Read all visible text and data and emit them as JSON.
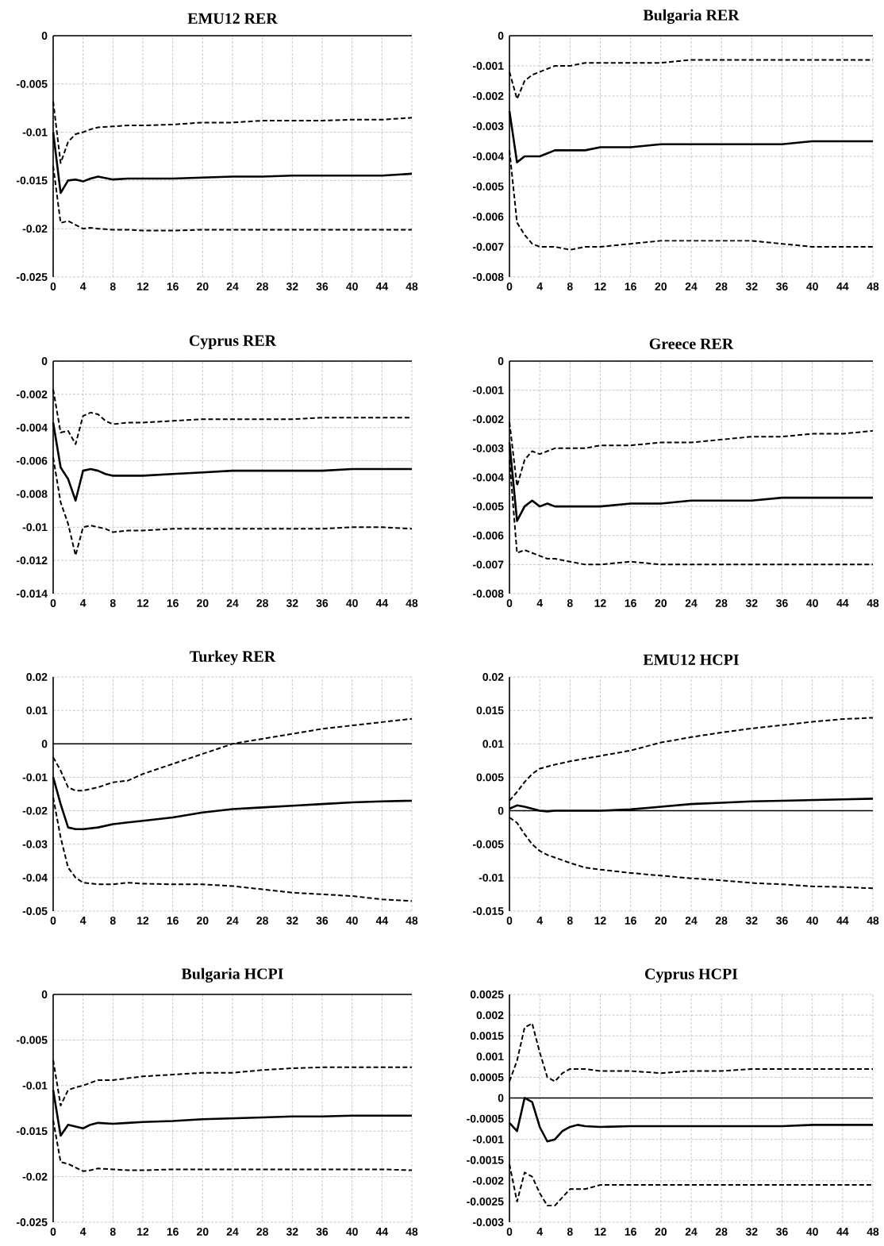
{
  "chart_data": [
    {
      "type": "line",
      "title": "EMU12 RER",
      "x": [
        0,
        1,
        2,
        3,
        4,
        5,
        6,
        8,
        10,
        12,
        16,
        20,
        24,
        28,
        32,
        36,
        40,
        44,
        48
      ],
      "xlim": [
        0,
        48
      ],
      "xticks": [
        0,
        4,
        8,
        12,
        16,
        20,
        24,
        28,
        32,
        36,
        40,
        44,
        48
      ],
      "ylim": [
        -0.025,
        0
      ],
      "yticks": [
        -0.025,
        -0.02,
        -0.015,
        -0.01,
        -0.005,
        0
      ],
      "grid": true,
      "ref_lines": [
        {
          "axis": "y",
          "value": 0
        }
      ],
      "series": [
        {
          "color": "#000000",
          "line_style": "dashed",
          "values": [
            -0.0068,
            -0.0132,
            -0.011,
            -0.0102,
            -0.01,
            -0.0097,
            -0.0095,
            -0.0094,
            -0.0093,
            -0.0093,
            -0.0092,
            -0.009,
            -0.009,
            -0.0088,
            -0.0088,
            -0.0088,
            -0.0087,
            -0.0087,
            -0.0085
          ]
        },
        {
          "color": "#000000",
          "line_style": "solid",
          "values": [
            -0.01,
            -0.0163,
            -0.015,
            -0.0149,
            -0.0151,
            -0.0148,
            -0.0146,
            -0.0149,
            -0.0148,
            -0.0148,
            -0.0148,
            -0.0147,
            -0.0146,
            -0.0146,
            -0.0145,
            -0.0145,
            -0.0145,
            -0.0145,
            -0.0143
          ]
        },
        {
          "color": "#000000",
          "line_style": "dashed",
          "values": [
            -0.0135,
            -0.0194,
            -0.0192,
            -0.0196,
            -0.02,
            -0.0199,
            -0.02,
            -0.0201,
            -0.0201,
            -0.0202,
            -0.0202,
            -0.0201,
            -0.0201,
            -0.0201,
            -0.0201,
            -0.0201,
            -0.0201,
            -0.0201,
            -0.0201
          ]
        }
      ]
    },
    {
      "type": "line",
      "title": "Bulgaria RER",
      "x": [
        0,
        1,
        2,
        3,
        4,
        5,
        6,
        8,
        10,
        12,
        16,
        20,
        24,
        28,
        32,
        36,
        40,
        44,
        48
      ],
      "xlim": [
        0,
        48
      ],
      "xticks": [
        0,
        4,
        8,
        12,
        16,
        20,
        24,
        28,
        32,
        36,
        40,
        44,
        48
      ],
      "ylim": [
        -0.008,
        0
      ],
      "yticks": [
        -0.008,
        -0.007,
        -0.006,
        -0.005,
        -0.004,
        -0.003,
        -0.002,
        -0.001,
        0
      ],
      "grid": true,
      "ref_lines": [
        {
          "axis": "y",
          "value": 0
        }
      ],
      "series": [
        {
          "color": "#000000",
          "line_style": "dashed",
          "values": [
            -0.0012,
            -0.0021,
            -0.0015,
            -0.0013,
            -0.0012,
            -0.0011,
            -0.001,
            -0.001,
            -0.0009,
            -0.0009,
            -0.0009,
            -0.0009,
            -0.0008,
            -0.0008,
            -0.0008,
            -0.0008,
            -0.0008,
            -0.0008,
            -0.0008
          ]
        },
        {
          "color": "#000000",
          "line_style": "solid",
          "values": [
            -0.0025,
            -0.0042,
            -0.004,
            -0.004,
            -0.004,
            -0.0039,
            -0.0038,
            -0.0038,
            -0.0038,
            -0.0037,
            -0.0037,
            -0.0036,
            -0.0036,
            -0.0036,
            -0.0036,
            -0.0036,
            -0.0035,
            -0.0035,
            -0.0035
          ]
        },
        {
          "color": "#000000",
          "line_style": "dashed",
          "values": [
            -0.0038,
            -0.0062,
            -0.0066,
            -0.0069,
            -0.007,
            -0.007,
            -0.007,
            -0.0071,
            -0.007,
            -0.007,
            -0.0069,
            -0.0068,
            -0.0068,
            -0.0068,
            -0.0068,
            -0.0069,
            -0.007,
            -0.007,
            -0.007
          ]
        }
      ]
    },
    {
      "type": "line",
      "title": "Cyprus RER",
      "x": [
        0,
        1,
        2,
        3,
        4,
        5,
        6,
        7,
        8,
        10,
        12,
        16,
        20,
        24,
        28,
        32,
        36,
        40,
        44,
        48
      ],
      "xlim": [
        0,
        48
      ],
      "xticks": [
        0,
        4,
        8,
        12,
        16,
        20,
        24,
        28,
        32,
        36,
        40,
        44,
        48
      ],
      "ylim": [
        -0.014,
        0
      ],
      "yticks": [
        -0.014,
        -0.012,
        -0.01,
        -0.008,
        -0.006,
        -0.004,
        -0.002,
        0
      ],
      "grid": true,
      "ref_lines": [
        {
          "axis": "y",
          "value": 0
        }
      ],
      "series": [
        {
          "color": "#000000",
          "line_style": "dashed",
          "values": [
            -0.0017,
            -0.0043,
            -0.0042,
            -0.005,
            -0.0033,
            -0.0031,
            -0.0032,
            -0.0036,
            -0.0038,
            -0.0037,
            -0.0037,
            -0.0036,
            -0.0035,
            -0.0035,
            -0.0035,
            -0.0035,
            -0.0034,
            -0.0034,
            -0.0034,
            -0.0034
          ]
        },
        {
          "color": "#000000",
          "line_style": "solid",
          "values": [
            -0.0037,
            -0.0064,
            -0.0071,
            -0.0084,
            -0.0066,
            -0.0065,
            -0.0066,
            -0.0068,
            -0.0069,
            -0.0069,
            -0.0069,
            -0.0068,
            -0.0067,
            -0.0066,
            -0.0066,
            -0.0066,
            -0.0066,
            -0.0065,
            -0.0065,
            -0.0065
          ]
        },
        {
          "color": "#000000",
          "line_style": "dashed",
          "values": [
            -0.0058,
            -0.0085,
            -0.0098,
            -0.0117,
            -0.01,
            -0.0099,
            -0.01,
            -0.0101,
            -0.0103,
            -0.0102,
            -0.0102,
            -0.0101,
            -0.0101,
            -0.0101,
            -0.0101,
            -0.0101,
            -0.0101,
            -0.01,
            -0.01,
            -0.0101
          ]
        }
      ]
    },
    {
      "type": "line",
      "title": "Greece RER",
      "x": [
        0,
        1,
        2,
        3,
        4,
        5,
        6,
        8,
        10,
        12,
        16,
        20,
        24,
        28,
        32,
        36,
        40,
        44,
        48
      ],
      "xlim": [
        0,
        48
      ],
      "xticks": [
        0,
        4,
        8,
        12,
        16,
        20,
        24,
        28,
        32,
        36,
        40,
        44,
        48
      ],
      "ylim": [
        -0.008,
        0
      ],
      "yticks": [
        -0.008,
        -0.007,
        -0.006,
        -0.005,
        -0.004,
        -0.003,
        -0.002,
        -0.001,
        0
      ],
      "grid": true,
      "ref_lines": [
        {
          "axis": "y",
          "value": 0
        }
      ],
      "series": [
        {
          "color": "#000000",
          "line_style": "dashed",
          "values": [
            -0.0021,
            -0.0043,
            -0.0034,
            -0.0031,
            -0.0032,
            -0.0031,
            -0.003,
            -0.003,
            -0.003,
            -0.0029,
            -0.0029,
            -0.0028,
            -0.0028,
            -0.0027,
            -0.0026,
            -0.0026,
            -0.0025,
            -0.0025,
            -0.0024
          ]
        },
        {
          "color": "#000000",
          "line_style": "solid",
          "values": [
            -0.0028,
            -0.0055,
            -0.005,
            -0.0048,
            -0.005,
            -0.0049,
            -0.005,
            -0.005,
            -0.005,
            -0.005,
            -0.0049,
            -0.0049,
            -0.0048,
            -0.0048,
            -0.0048,
            -0.0047,
            -0.0047,
            -0.0047,
            -0.0047
          ]
        },
        {
          "color": "#000000",
          "line_style": "dashed",
          "values": [
            -0.0034,
            -0.0066,
            -0.0065,
            -0.0066,
            -0.0067,
            -0.0068,
            -0.0068,
            -0.0069,
            -0.007,
            -0.007,
            -0.0069,
            -0.007,
            -0.007,
            -0.007,
            -0.007,
            -0.007,
            -0.007,
            -0.007,
            -0.007
          ]
        }
      ]
    },
    {
      "type": "line",
      "title": "Turkey RER",
      "x": [
        0,
        1,
        2,
        3,
        4,
        6,
        8,
        10,
        12,
        16,
        20,
        24,
        28,
        32,
        36,
        40,
        44,
        48
      ],
      "xlim": [
        0,
        48
      ],
      "xticks": [
        0,
        4,
        8,
        12,
        16,
        20,
        24,
        28,
        32,
        36,
        40,
        44,
        48
      ],
      "ylim": [
        -0.05,
        0.02
      ],
      "yticks": [
        -0.05,
        -0.04,
        -0.03,
        -0.02,
        -0.01,
        0,
        0.01,
        0.02
      ],
      "grid": true,
      "ref_lines": [
        {
          "axis": "y",
          "value": 0
        }
      ],
      "series": [
        {
          "color": "#000000",
          "line_style": "dashed",
          "values": [
            -0.004,
            -0.008,
            -0.013,
            -0.014,
            -0.014,
            -0.013,
            -0.0115,
            -0.011,
            -0.009,
            -0.006,
            -0.003,
            0.0,
            0.0015,
            0.003,
            0.0045,
            0.0055,
            0.0065,
            0.0075
          ]
        },
        {
          "color": "#000000",
          "line_style": "solid",
          "values": [
            -0.01,
            -0.018,
            -0.025,
            -0.0255,
            -0.0255,
            -0.025,
            -0.024,
            -0.0235,
            -0.023,
            -0.022,
            -0.0205,
            -0.0195,
            -0.019,
            -0.0185,
            -0.018,
            -0.0175,
            -0.0172,
            -0.017
          ]
        },
        {
          "color": "#000000",
          "line_style": "dashed",
          "values": [
            -0.016,
            -0.028,
            -0.037,
            -0.04,
            -0.0415,
            -0.042,
            -0.042,
            -0.0415,
            -0.0418,
            -0.042,
            -0.042,
            -0.0425,
            -0.0435,
            -0.0445,
            -0.045,
            -0.0455,
            -0.0465,
            -0.047
          ]
        }
      ]
    },
    {
      "type": "line",
      "title": "EMU12 HCPI",
      "x": [
        0,
        1,
        2,
        3,
        4,
        5,
        6,
        8,
        10,
        12,
        16,
        20,
        24,
        28,
        32,
        36,
        40,
        44,
        48
      ],
      "xlim": [
        0,
        48
      ],
      "xticks": [
        0,
        4,
        8,
        12,
        16,
        20,
        24,
        28,
        32,
        36,
        40,
        44,
        48
      ],
      "ylim": [
        -0.015,
        0.02
      ],
      "yticks": [
        -0.015,
        -0.01,
        -0.005,
        0,
        0.005,
        0.01,
        0.015,
        0.02
      ],
      "grid": true,
      "ref_lines": [
        {
          "axis": "y",
          "value": 0
        }
      ],
      "series": [
        {
          "color": "#000000",
          "line_style": "dashed",
          "values": [
            0.0015,
            0.0028,
            0.0043,
            0.0055,
            0.0063,
            0.0066,
            0.0069,
            0.0074,
            0.0078,
            0.0082,
            0.009,
            0.0102,
            0.011,
            0.0117,
            0.0123,
            0.0128,
            0.0133,
            0.0137,
            0.0139
          ]
        },
        {
          "color": "#000000",
          "line_style": "solid",
          "values": [
            0.0003,
            0.0008,
            0.0006,
            0.0003,
            0.0,
            -0.0001,
            0.0,
            0.0,
            0.0,
            0.0,
            0.0002,
            0.0006,
            0.001,
            0.0012,
            0.0014,
            0.0015,
            0.0016,
            0.0017,
            0.0018
          ]
        },
        {
          "color": "#000000",
          "line_style": "dashed",
          "values": [
            -0.001,
            -0.0018,
            -0.0035,
            -0.005,
            -0.006,
            -0.0066,
            -0.007,
            -0.0078,
            -0.0085,
            -0.0088,
            -0.0093,
            -0.0097,
            -0.0101,
            -0.0104,
            -0.0108,
            -0.011,
            -0.0113,
            -0.0114,
            -0.0116
          ]
        }
      ]
    },
    {
      "type": "line",
      "title": "Bulgaria HCPI",
      "x": [
        0,
        1,
        2,
        3,
        4,
        5,
        6,
        8,
        10,
        12,
        16,
        20,
        24,
        28,
        32,
        36,
        40,
        44,
        48
      ],
      "xlim": [
        0,
        48
      ],
      "xticks": [
        0,
        4,
        8,
        12,
        16,
        20,
        24,
        28,
        32,
        36,
        40,
        44,
        48
      ],
      "ylim": [
        -0.025,
        0
      ],
      "yticks": [
        -0.025,
        -0.02,
        -0.015,
        -0.01,
        -0.005,
        0
      ],
      "grid": true,
      "ref_lines": [
        {
          "axis": "y",
          "value": 0
        }
      ],
      "series": [
        {
          "color": "#000000",
          "line_style": "dashed",
          "values": [
            -0.0072,
            -0.0122,
            -0.0105,
            -0.0102,
            -0.01,
            -0.0097,
            -0.0094,
            -0.0094,
            -0.0092,
            -0.009,
            -0.0088,
            -0.0086,
            -0.0086,
            -0.0083,
            -0.0081,
            -0.008,
            -0.008,
            -0.008,
            -0.008
          ]
        },
        {
          "color": "#000000",
          "line_style": "solid",
          "values": [
            -0.0105,
            -0.0155,
            -0.0143,
            -0.0145,
            -0.0147,
            -0.0143,
            -0.0141,
            -0.0142,
            -0.0141,
            -0.014,
            -0.0139,
            -0.0137,
            -0.0136,
            -0.0135,
            -0.0134,
            -0.0134,
            -0.0133,
            -0.0133,
            -0.0133
          ]
        },
        {
          "color": "#000000",
          "line_style": "dashed",
          "values": [
            -0.0138,
            -0.0184,
            -0.0186,
            -0.019,
            -0.0194,
            -0.0193,
            -0.0191,
            -0.0192,
            -0.0193,
            -0.0193,
            -0.0192,
            -0.0192,
            -0.0192,
            -0.0192,
            -0.0192,
            -0.0192,
            -0.0192,
            -0.0192,
            -0.0193
          ]
        }
      ]
    },
    {
      "type": "line",
      "title": "Cyprus HCPI",
      "x": [
        0,
        1,
        2,
        3,
        4,
        5,
        6,
        7,
        8,
        9,
        10,
        12,
        16,
        20,
        24,
        28,
        32,
        36,
        40,
        44,
        48
      ],
      "xlim": [
        0,
        48
      ],
      "xticks": [
        0,
        4,
        8,
        12,
        16,
        20,
        24,
        28,
        32,
        36,
        40,
        44,
        48
      ],
      "ylim": [
        -0.003,
        0.0025
      ],
      "yticks": [
        -0.003,
        -0.0025,
        -0.002,
        -0.0015,
        -0.001,
        -0.0005,
        0,
        0.0005,
        0.001,
        0.0015,
        0.002,
        0.0025
      ],
      "grid": true,
      "ref_lines": [
        {
          "axis": "y",
          "value": 0
        }
      ],
      "series": [
        {
          "color": "#000000",
          "line_style": "dashed",
          "values": [
            0.0004,
            0.0009,
            0.0017,
            0.0018,
            0.0011,
            0.0005,
            0.0004,
            0.0006,
            0.0007,
            0.0007,
            0.0007,
            0.00065,
            0.00065,
            0.0006,
            0.00065,
            0.00065,
            0.0007,
            0.0007,
            0.0007,
            0.0007,
            0.0007
          ]
        },
        {
          "color": "#000000",
          "line_style": "solid",
          "values": [
            -0.0006,
            -0.0008,
            0.0,
            -0.0001,
            -0.0007,
            -0.00105,
            -0.001,
            -0.0008,
            -0.0007,
            -0.00065,
            -0.00068,
            -0.0007,
            -0.00068,
            -0.00068,
            -0.00068,
            -0.00068,
            -0.00068,
            -0.00068,
            -0.00065,
            -0.00065,
            -0.00065
          ]
        },
        {
          "color": "#000000",
          "line_style": "dashed",
          "values": [
            -0.0016,
            -0.0025,
            -0.0018,
            -0.0019,
            -0.0023,
            -0.0026,
            -0.0026,
            -0.0024,
            -0.0022,
            -0.0022,
            -0.0022,
            -0.0021,
            -0.0021,
            -0.0021,
            -0.0021,
            -0.0021,
            -0.0021,
            -0.0021,
            -0.0021,
            -0.0021,
            -0.0021
          ]
        }
      ]
    }
  ]
}
